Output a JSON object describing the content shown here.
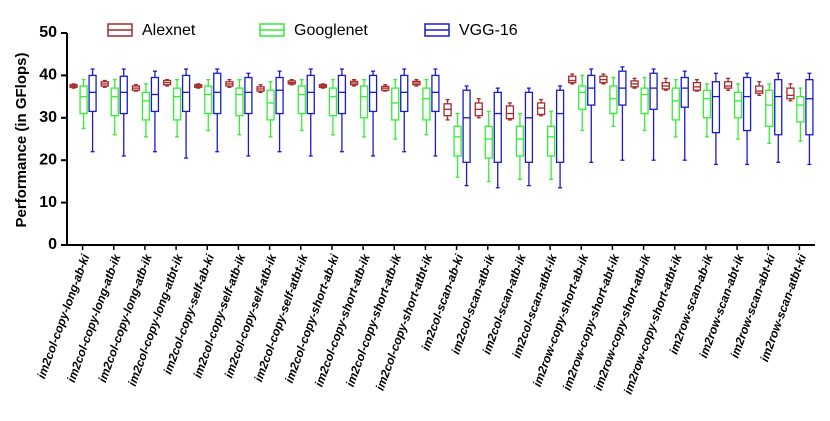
{
  "chart_data": {
    "type": "box",
    "y_label": "Performance (in GFlops)",
    "ylim": [
      0,
      50
    ],
    "yticks": [
      0,
      10,
      20,
      30,
      40,
      50
    ],
    "categories": [
      "im2col-copy-long-ab-ki",
      "im2col-copy-long-atb-ik",
      "im2col-copy-long-atb-ik",
      "im2col-copy-long-atbt-ik",
      "im2col-copy-self-ab-ki",
      "im2col-copy-self-atb-ik",
      "im2col-copy-self-atb-ik",
      "im2col-copy-self-atbt-ik",
      "im2col-copy-short-ab-ki",
      "im2col-copy-short-atb-ik",
      "im2col-copy-short-atb-ik",
      "im2col-copy-short-atbt-ik",
      "im2col-scan-ab-ki",
      "im2col-scan-atb-ik",
      "im2col-scan-atb-ik",
      "im2col-scan-atbt-ik",
      "im2row-copy-short-ab-ik",
      "im2row-copy-short-abt-ik",
      "im2row-copy-short-atb-ik",
      "im2row-copy-short-atbt-ik",
      "im2row-scan-ab-ik",
      "im2row-scan-abt-ik",
      "im2row-scan-abt-ki",
      "im2row-scan-atbt-ki"
    ],
    "series": [
      {
        "name": "Alexnet",
        "color": "#a52a2a",
        "min": [
          37,
          37.2,
          36.3,
          37.5,
          37,
          37.2,
          36,
          37.8,
          37,
          37.5,
          36.3,
          37.5,
          29.5,
          30,
          29.5,
          30.5,
          38,
          38,
          37,
          36.5,
          36.3,
          36.5,
          35.3,
          34
        ],
        "q1": [
          37.2,
          37.5,
          36.5,
          37.8,
          37.2,
          37.5,
          36.3,
          38,
          37.2,
          37.8,
          36.5,
          37.8,
          30.5,
          30.5,
          29.8,
          30.8,
          38.3,
          38.3,
          37.3,
          36.8,
          36.5,
          37,
          35.8,
          34.5
        ],
        "median": [
          37.5,
          38,
          37,
          38.3,
          37.5,
          38,
          36.8,
          38.3,
          37.5,
          38.2,
          37,
          38.2,
          32,
          32,
          31,
          32.3,
          38.8,
          39,
          38,
          37.5,
          37.3,
          37.5,
          36.3,
          35.3
        ],
        "q3": [
          37.8,
          38.5,
          37.5,
          38.8,
          37.8,
          38.5,
          37.3,
          38.7,
          37.8,
          38.6,
          37.4,
          38.6,
          33.3,
          33.5,
          32.8,
          33.5,
          39.8,
          39.8,
          38.7,
          38.3,
          38.3,
          38.5,
          37.5,
          37
        ],
        "max": [
          38,
          38.8,
          37.8,
          39,
          38,
          39,
          37.8,
          39,
          38,
          39,
          37.8,
          39,
          34.3,
          34.5,
          33.5,
          34.3,
          40.3,
          40.3,
          39.3,
          39.3,
          39,
          39.3,
          38.5,
          38
        ]
      },
      {
        "name": "Googlenet",
        "color": "#33ee33",
        "min": [
          27.5,
          26,
          25.5,
          25.5,
          27,
          26,
          25.5,
          27,
          26,
          25.5,
          25,
          26,
          16,
          15,
          15.5,
          15.5,
          27,
          28,
          27,
          25.5,
          25.5,
          25,
          24,
          24.5
        ],
        "q1": [
          31,
          30.5,
          29.5,
          29.5,
          31,
          30.5,
          29.5,
          31,
          30.5,
          30,
          29.5,
          29.5,
          21,
          20.5,
          21,
          21,
          32,
          31,
          31,
          29.5,
          30,
          30,
          28,
          29
        ],
        "median": [
          35,
          35,
          34,
          35,
          35.5,
          35.5,
          33.5,
          35.5,
          35,
          35,
          33.5,
          34.5,
          25.5,
          25,
          25,
          25.5,
          36,
          34.5,
          35.5,
          34,
          34.5,
          34,
          33,
          33
        ],
        "q3": [
          37.5,
          37,
          36,
          37,
          37.5,
          37,
          36.5,
          37.5,
          37,
          37.5,
          37,
          37,
          28,
          28,
          28,
          28,
          37.5,
          37.5,
          37,
          37,
          36.5,
          36,
          36.5,
          35
        ],
        "max": [
          39,
          39,
          38,
          39,
          39,
          39,
          38.5,
          39,
          39,
          39,
          39,
          39,
          31,
          31.5,
          31,
          31.5,
          40,
          39.5,
          39.5,
          39,
          38,
          38,
          38,
          37
        ]
      },
      {
        "name": "VGG-16",
        "color": "#1a1acc",
        "min": [
          22,
          21,
          22,
          20.5,
          22,
          21,
          22,
          21,
          22,
          21,
          22,
          21,
          14,
          13.5,
          14,
          13.5,
          19.5,
          20,
          20,
          20,
          19,
          19,
          19.5,
          19
        ],
        "q1": [
          31.5,
          31,
          31.5,
          31.5,
          31,
          31,
          31,
          31,
          31,
          31.5,
          31.5,
          31.5,
          19.5,
          19.5,
          19.5,
          19.5,
          33,
          33,
          32,
          32.5,
          26.5,
          27,
          26,
          26
        ],
        "median": [
          36,
          36,
          35.5,
          36,
          36,
          36,
          36.5,
          36,
          36,
          36,
          36,
          36,
          30,
          31,
          30,
          31,
          37,
          37,
          37,
          37,
          35,
          35,
          35,
          34.5
        ],
        "q3": [
          40,
          39.8,
          39.5,
          40,
          40.5,
          39.5,
          39.5,
          40,
          40,
          40,
          40,
          40,
          36.5,
          36,
          36,
          36.5,
          40,
          41,
          40.5,
          39.5,
          38.5,
          39.5,
          39,
          39
        ],
        "max": [
          41.5,
          41.5,
          41,
          41.5,
          41.5,
          40.5,
          41,
          41.5,
          41.5,
          41,
          41.5,
          41.5,
          37.5,
          37,
          37,
          37.5,
          41.5,
          42,
          41.5,
          41,
          40.5,
          40.5,
          40.5,
          40.5
        ]
      }
    ]
  }
}
